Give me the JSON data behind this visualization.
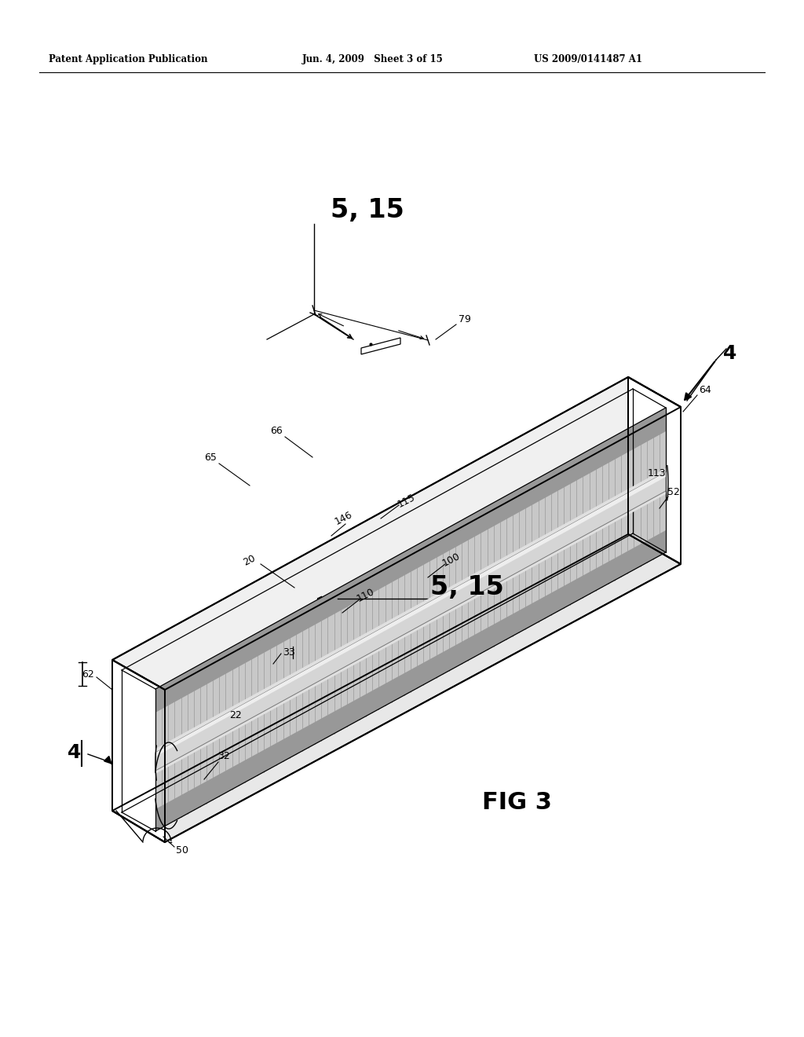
{
  "background": "#ffffff",
  "line_color": "#000000",
  "header_left": "Patent Application Publication",
  "header_mid": "Jun. 4, 2009   Sheet 3 of 15",
  "header_right": "US 2009/0141487 A1",
  "fig_label": "FIG 3",
  "gray_light": "#d8d8d8",
  "gray_mid": "#b0b0b0",
  "gray_dark": "#888888",
  "white": "#ffffff",
  "off_white": "#f5f5f5"
}
